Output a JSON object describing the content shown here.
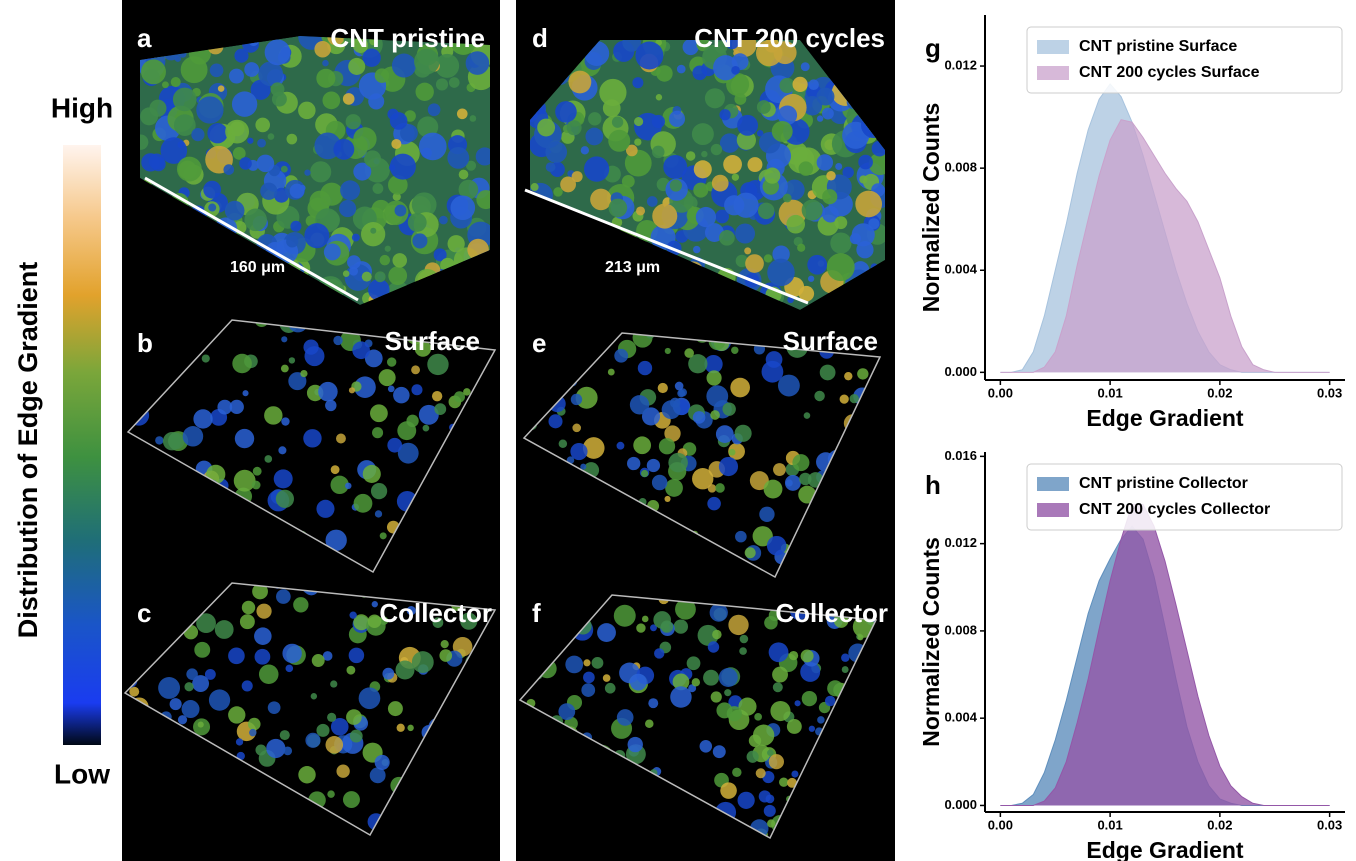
{
  "colorbar": {
    "title": "Distribution of Edge Gradient",
    "high": "High",
    "low": "Low"
  },
  "panels": [
    {
      "letter": "a",
      "label": "CNT pristine",
      "scale": "160 μm"
    },
    {
      "letter": "b",
      "label": "Surface"
    },
    {
      "letter": "c",
      "label": "Collector"
    },
    {
      "letter": "d",
      "label": "CNT 200 cycles",
      "scale": "213 μm"
    },
    {
      "letter": "e",
      "label": "Surface"
    },
    {
      "letter": "f",
      "label": "Collector"
    }
  ],
  "chart_data": [
    {
      "type": "area",
      "panel_label": "g",
      "xlabel": "Edge Gradient",
      "ylabel": "Normalized Counts",
      "x": [
        0,
        0.001,
        0.002,
        0.003,
        0.004,
        0.005,
        0.006,
        0.007,
        0.008,
        0.009,
        0.01,
        0.011,
        0.012,
        0.013,
        0.014,
        0.015,
        0.016,
        0.017,
        0.018,
        0.019,
        0.02,
        0.021,
        0.022,
        0.023,
        0.024,
        0.025,
        0.026,
        0.027,
        0.028,
        0.029,
        0.03
      ],
      "series": [
        {
          "name": "CNT pristine Surface",
          "color": "#a7c3de",
          "values": [
            0,
            0,
            0.0001,
            0.0008,
            0.0022,
            0.004,
            0.0058,
            0.0078,
            0.0095,
            0.0107,
            0.0113,
            0.0108,
            0.0098,
            0.0085,
            0.007,
            0.0055,
            0.004,
            0.0027,
            0.0016,
            0.0008,
            0.0003,
            0.0001,
            0,
            0,
            0,
            0,
            0,
            0,
            0,
            0,
            0
          ]
        },
        {
          "name": "CNT 200 cycles Surface",
          "color": "#c9a2cc",
          "values": [
            0,
            0,
            0,
            0,
            0.0002,
            0.0008,
            0.0022,
            0.0042,
            0.006,
            0.0077,
            0.0091,
            0.0099,
            0.0098,
            0.0092,
            0.0085,
            0.0078,
            0.0072,
            0.0067,
            0.0059,
            0.0048,
            0.0037,
            0.0022,
            0.001,
            0.0003,
            0.0001,
            0,
            0,
            0,
            0,
            0,
            0
          ]
        }
      ],
      "alpha": 0.75,
      "legend": "upper right",
      "xlim": [
        -0.0014,
        0.0314
      ],
      "ylim": [
        -0.0003,
        0.014
      ],
      "xticks": [
        {
          "value": 0,
          "label": "0.00"
        },
        {
          "value": 0.01,
          "label": "0.01"
        },
        {
          "value": 0.02,
          "label": "0.02"
        },
        {
          "value": 0.03,
          "label": "0.03"
        }
      ],
      "yticks": [
        {
          "value": 0,
          "label": "0.000"
        },
        {
          "value": 0.004,
          "label": "0.004"
        },
        {
          "value": 0.008,
          "label": "0.008"
        },
        {
          "value": 0.012,
          "label": "0.012"
        }
      ]
    },
    {
      "type": "area",
      "panel_label": "h",
      "xlabel": "Edge Gradient",
      "ylabel": "Normalized Counts",
      "x": [
        0,
        0.001,
        0.002,
        0.003,
        0.004,
        0.005,
        0.006,
        0.007,
        0.008,
        0.009,
        0.01,
        0.011,
        0.012,
        0.013,
        0.014,
        0.015,
        0.016,
        0.017,
        0.018,
        0.019,
        0.02,
        0.021,
        0.022,
        0.023,
        0.024,
        0.025,
        0.026,
        0.027,
        0.028,
        0.029,
        0.03
      ],
      "series": [
        {
          "name": "CNT pristine Collector",
          "color": "#5f8fbd",
          "values": [
            0,
            0,
            0.0001,
            0.0005,
            0.0015,
            0.003,
            0.0048,
            0.0068,
            0.0088,
            0.0103,
            0.0113,
            0.0122,
            0.0128,
            0.0122,
            0.0105,
            0.0082,
            0.0058,
            0.0036,
            0.002,
            0.0009,
            0.0003,
            0.0001,
            0,
            0,
            0,
            0,
            0,
            0,
            0,
            0,
            0
          ]
        },
        {
          "name": "CNT 200 cycles Collector",
          "color": "#9457a8",
          "values": [
            0,
            0,
            0,
            0,
            0.0002,
            0.0008,
            0.002,
            0.0038,
            0.0058,
            0.0081,
            0.0103,
            0.0122,
            0.0138,
            0.0138,
            0.0128,
            0.0112,
            0.0092,
            0.0071,
            0.005,
            0.0032,
            0.0018,
            0.0009,
            0.0004,
            0.0001,
            0,
            0,
            0,
            0,
            0,
            0,
            0
          ]
        }
      ],
      "alpha": 0.8,
      "legend": "upper right",
      "xlim": [
        -0.0014,
        0.0314
      ],
      "ylim": [
        -0.0003,
        0.0162
      ],
      "xticks": [
        {
          "value": 0,
          "label": "0.00"
        },
        {
          "value": 0.01,
          "label": "0.01"
        },
        {
          "value": 0.02,
          "label": "0.02"
        },
        {
          "value": 0.03,
          "label": "0.03"
        }
      ],
      "yticks": [
        {
          "value": 0,
          "label": "0.000"
        },
        {
          "value": 0.004,
          "label": "0.004"
        },
        {
          "value": 0.008,
          "label": "0.008"
        },
        {
          "value": 0.012,
          "label": "0.012"
        },
        {
          "value": 0.016,
          "label": "0.016"
        }
      ]
    }
  ]
}
